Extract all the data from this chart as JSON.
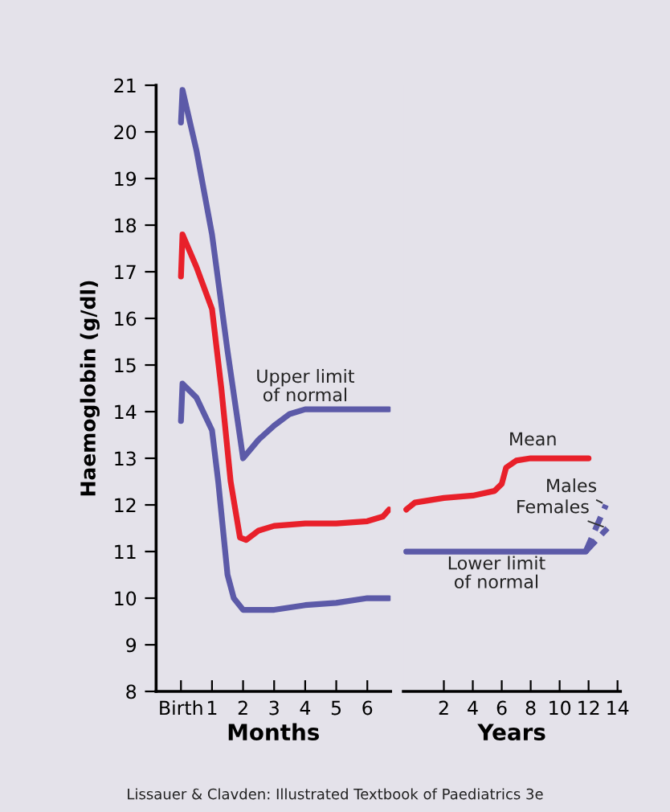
{
  "chart_data": [
    {
      "type": "line",
      "xlabel": "Months",
      "ylabel": "Haemoglobin (g/dl)",
      "xlim": [
        -0.8,
        6.75
      ],
      "ylim": [
        8,
        21
      ],
      "xticks": [
        {
          "value": 0,
          "label": "Birth"
        },
        1,
        2,
        3,
        4,
        5,
        6
      ],
      "yticks": [
        8,
        9,
        10,
        11,
        12,
        13,
        14,
        15,
        16,
        17,
        18,
        19,
        20,
        21
      ],
      "grid": false,
      "marker": "none",
      "series": [
        {
          "name": "Upper limit\nof normal",
          "color": "#5c5aa8",
          "x": [
            0,
            0.05,
            0.5,
            1,
            1.5,
            2,
            2.5,
            3,
            3.5,
            4,
            5,
            6.7
          ],
          "values": [
            20.2,
            20.9,
            19.6,
            17.8,
            15.3,
            13.0,
            13.4,
            13.7,
            13.95,
            14.05,
            14.05,
            14.05
          ]
        },
        {
          "color": "#e8202a",
          "x": [
            0,
            0.05,
            0.5,
            1,
            1.3,
            1.6,
            1.9,
            2.1,
            2.5,
            3,
            4,
            5,
            6,
            6.5,
            6.7
          ],
          "values": [
            16.9,
            17.8,
            17.1,
            16.2,
            14.5,
            12.5,
            11.3,
            11.25,
            11.45,
            11.55,
            11.6,
            11.6,
            11.65,
            11.75,
            11.9
          ]
        },
        {
          "color": "#5c5aa8",
          "x": [
            0,
            0.05,
            0.5,
            1,
            1.2,
            1.5,
            1.7,
            2,
            3,
            4,
            5,
            6,
            6.7
          ],
          "values": [
            13.8,
            14.6,
            14.3,
            13.6,
            12.5,
            10.5,
            10.0,
            9.75,
            9.75,
            9.85,
            9.9,
            10.0,
            10.0
          ]
        }
      ]
    },
    {
      "type": "line",
      "xlabel": "Years",
      "xlim": [
        -0.8,
        14.2
      ],
      "ylim": [
        8,
        21
      ],
      "tick_labels": "x",
      "xticks": [
        2,
        4,
        6,
        8,
        10,
        12,
        14
      ],
      "yticks": [
        8,
        9,
        10,
        11,
        12,
        13,
        14,
        15,
        16,
        17,
        18,
        19,
        20,
        21
      ],
      "grid": false,
      "marker": "none",
      "series": [
        {
          "name": "Mean",
          "color": "#e8202a",
          "x": [
            -0.6,
            0,
            2,
            4,
            5.5,
            6,
            6.3,
            7,
            8,
            12
          ],
          "values": [
            11.9,
            12.05,
            12.15,
            12.2,
            12.3,
            12.45,
            12.8,
            12.95,
            13.0,
            13.0
          ]
        },
        {
          "name": "Lower limit\nof normal",
          "color": "#5c5aa8",
          "x": [
            -0.6,
            11.8
          ],
          "values": [
            11.0,
            11.0
          ]
        },
        {
          "name": "Males",
          "color": "#5c5aa8",
          "line_style": "dashed",
          "x": [
            11.8,
            13.2
          ],
          "values": [
            11.0,
            12.0
          ]
        },
        {
          "name": "Females",
          "color": "#5c5aa8",
          "line_style": "dashed",
          "x": [
            11.8,
            13.3
          ],
          "values": [
            11.0,
            11.5
          ]
        }
      ],
      "annotations": [
        "Lissauer & Clavden: Illustrated Textbook of Paediatrics 3e"
      ]
    }
  ]
}
